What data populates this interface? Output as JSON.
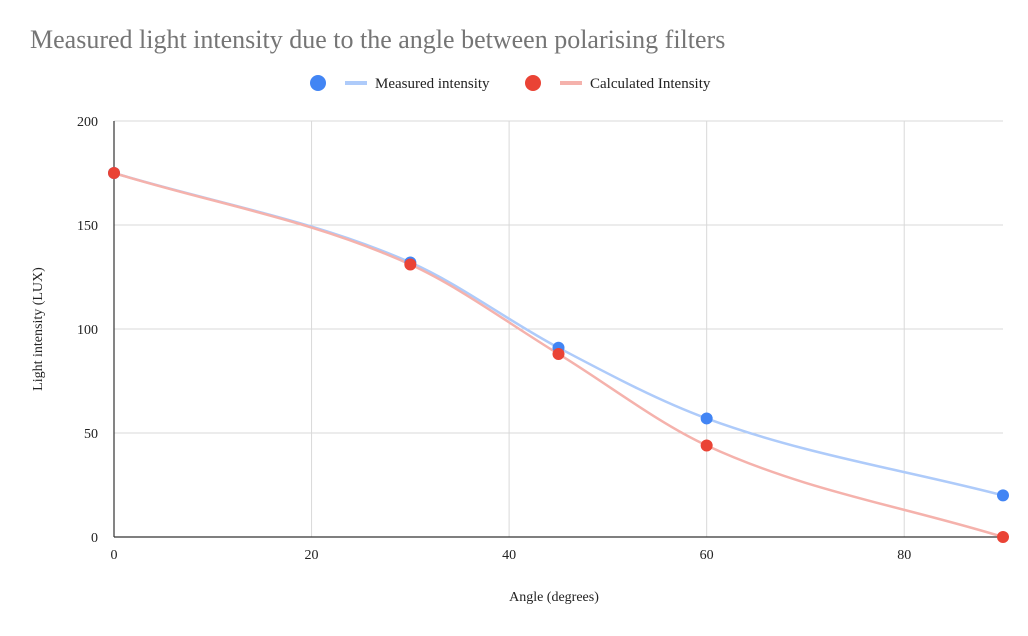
{
  "chart_data": {
    "type": "scatter",
    "title": "Measured light intensity due to the angle between polarising filters",
    "xlabel": "Angle (degrees)",
    "ylabel": "Light intensity (LUX)",
    "xlim": [
      0,
      90
    ],
    "ylim": [
      0,
      200
    ],
    "x_ticks": [
      0,
      20,
      40,
      60,
      80
    ],
    "y_ticks": [
      0,
      50,
      100,
      150,
      200
    ],
    "x_tick_labels": [
      "0",
      "20",
      "40",
      "60",
      "80"
    ],
    "y_tick_labels": [
      "0",
      "50",
      "100",
      "150",
      "200"
    ],
    "grid": true,
    "legend_position": "top",
    "smooth_trendline": true,
    "series": [
      {
        "name": "Measured intensity",
        "point_color": "#4285f4",
        "line_color": "#aecbfa",
        "x": [
          0,
          30,
          45,
          60,
          90
        ],
        "y": [
          175,
          132,
          91,
          57,
          20
        ]
      },
      {
        "name": "Calculated Intensity",
        "point_color": "#ea4335",
        "line_color": "#f5b2ac",
        "x": [
          0,
          30,
          45,
          60,
          90
        ],
        "y": [
          175,
          131,
          88,
          44,
          0
        ]
      }
    ]
  }
}
